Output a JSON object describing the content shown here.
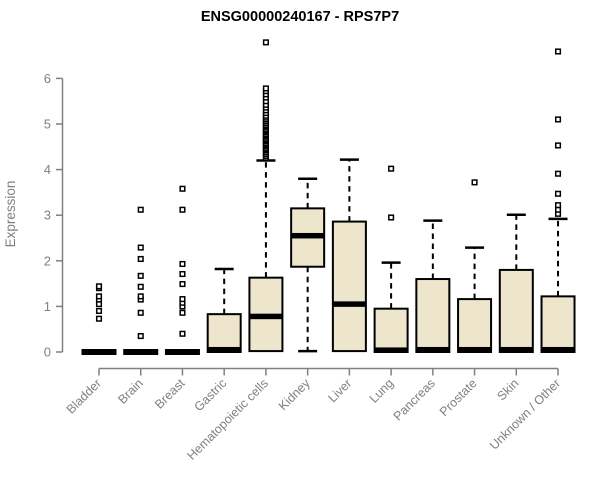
{
  "chart_data": {
    "type": "box",
    "title": "ENSG00000240167 - RPS7P7",
    "xlabel": "",
    "ylabel": "Expression",
    "ylim": [
      0,
      6
    ],
    "yticks": [
      0,
      1,
      2,
      3,
      4,
      5,
      6
    ],
    "grid": false,
    "legend": "none",
    "categories": [
      "Bladder",
      "Brain",
      "Breast",
      "Gastric",
      "Hematopoietic cells",
      "Kidney",
      "Liver",
      "Lung",
      "Pancreas",
      "Prostate",
      "Skin",
      "Unknown / Other"
    ],
    "series": [
      {
        "name": "Bladder",
        "q1": 0,
        "median": 0,
        "q3": 0,
        "whisker_low": 0,
        "whisker_high": 0,
        "outliers": [
          0.73,
          0.9,
          1.05,
          1.15,
          1.22,
          1.4,
          1.44
        ]
      },
      {
        "name": "Brain",
        "q1": 0,
        "median": 0,
        "q3": 0,
        "whisker_low": 0,
        "whisker_high": 0,
        "outliers": [
          0.35,
          0.86,
          1.15,
          1.22,
          1.43,
          1.67,
          2.04,
          2.29,
          3.12
        ]
      },
      {
        "name": "Breast",
        "q1": 0,
        "median": 0,
        "q3": 0,
        "whisker_low": 0,
        "whisker_high": 0,
        "outliers": [
          0.4,
          0.86,
          1.0,
          1.08,
          1.16,
          1.49,
          1.71,
          1.93,
          3.12,
          3.58
        ]
      },
      {
        "name": "Gastric",
        "q1": 0,
        "median": 0.05,
        "q3": 0.83,
        "whisker_low": 0,
        "whisker_high": 1.82,
        "outliers": []
      },
      {
        "name": "Hematopoietic cells",
        "q1": 0.02,
        "median": 0.78,
        "q3": 1.63,
        "whisker_low": 0.02,
        "whisker_high": 4.2,
        "outliers": [
          4.26,
          4.3,
          4.34,
          4.38,
          4.42,
          4.45,
          4.48,
          4.52,
          4.55,
          4.58,
          4.62,
          4.65,
          4.68,
          4.72,
          4.75,
          4.78,
          4.82,
          4.85,
          4.88,
          4.92,
          4.95,
          4.98,
          5.02,
          5.06,
          5.1,
          5.14,
          5.18,
          5.24,
          5.3,
          5.36,
          5.42,
          5.5,
          5.58,
          5.65,
          5.72,
          5.78,
          6.79
        ]
      },
      {
        "name": "Kidney",
        "q1": 1.87,
        "median": 2.55,
        "q3": 3.15,
        "whisker_low": 0.02,
        "whisker_high": 3.8,
        "outliers": []
      },
      {
        "name": "Liver",
        "q1": 0.02,
        "median": 1.05,
        "q3": 2.86,
        "whisker_low": 0.02,
        "whisker_high": 4.22,
        "outliers": []
      },
      {
        "name": "Lung",
        "q1": 0,
        "median": 0.04,
        "q3": 0.95,
        "whisker_low": 0,
        "whisker_high": 1.96,
        "outliers": [
          2.95,
          4.02
        ]
      },
      {
        "name": "Pancreas",
        "q1": 0,
        "median": 0.05,
        "q3": 1.6,
        "whisker_low": 0,
        "whisker_high": 2.88,
        "outliers": []
      },
      {
        "name": "Prostate",
        "q1": 0,
        "median": 0.05,
        "q3": 1.16,
        "whisker_low": 0,
        "whisker_high": 2.29,
        "outliers": [
          3.72
        ]
      },
      {
        "name": "Skin",
        "q1": 0,
        "median": 0.05,
        "q3": 1.8,
        "whisker_low": 0,
        "whisker_high": 3.01,
        "outliers": []
      },
      {
        "name": "Unknown / Other",
        "q1": 0,
        "median": 0.05,
        "q3": 1.22,
        "whisker_low": 0,
        "whisker_high": 2.92,
        "outliers": [
          3.03,
          3.12,
          3.22,
          3.47,
          3.91,
          4.53,
          5.1,
          6.59
        ]
      }
    ],
    "colors": {
      "box_fill": "#EDE6CD",
      "box_border": "#000000",
      "median": "#000000",
      "whisker": "#000000",
      "outlier": "#000000",
      "axis_line": "#808080",
      "axis_text": "#808080",
      "title_color": "#000000",
      "background": "#FFFFFF"
    }
  }
}
